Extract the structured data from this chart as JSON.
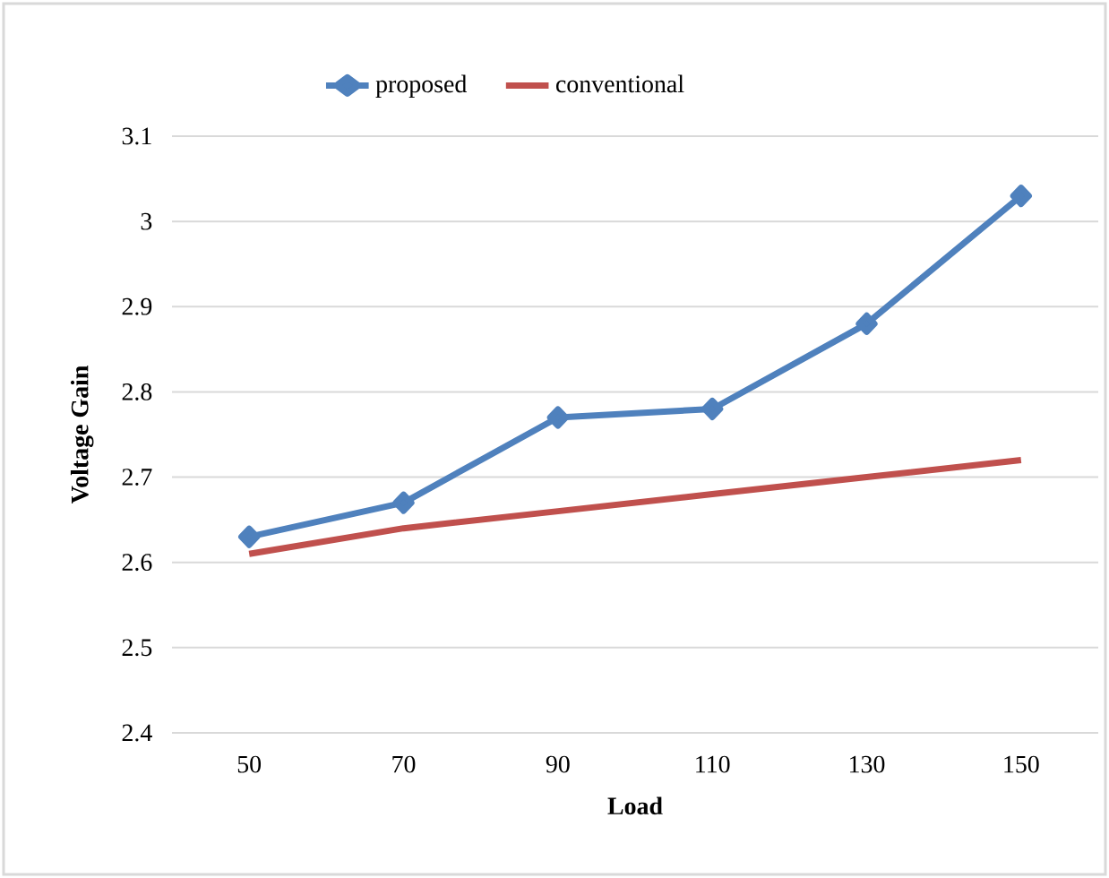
{
  "chart_data": {
    "type": "line",
    "xlabel": "Load",
    "ylabel": "Voltage Gain",
    "categories": [
      "50",
      "70",
      "90",
      "110",
      "130",
      "150"
    ],
    "series": [
      {
        "name": "proposed",
        "color": "#4f81bd",
        "marker": "diamond",
        "values": [
          2.63,
          2.67,
          2.77,
          2.78,
          2.88,
          3.03
        ]
      },
      {
        "name": "conventional",
        "color": "#c0504d",
        "marker": "none",
        "values": [
          2.61,
          2.64,
          2.66,
          2.68,
          2.7,
          2.72
        ]
      }
    ],
    "ylim": [
      2.4,
      3.1
    ],
    "yticks": [
      2.4,
      2.5,
      2.6,
      2.7,
      2.8,
      2.9,
      3,
      3.1
    ],
    "grid": "y",
    "legend": "top",
    "line_style": "solid"
  }
}
